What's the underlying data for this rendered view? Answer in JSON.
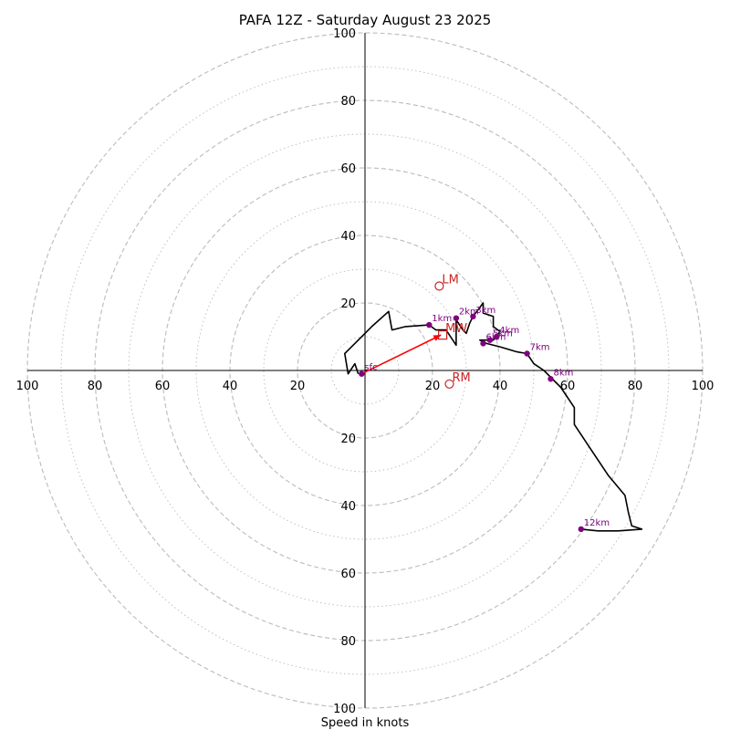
{
  "chart_data": {
    "type": "hodograph",
    "title": "PAFA 12Z - Saturday August 23 2025",
    "xlabel": "Speed in knots",
    "ring_max": 100,
    "ring_labels": [
      "20",
      "40",
      "60",
      "80",
      "100"
    ],
    "rings": {
      "major_step": 20,
      "minor_step": 10,
      "major_style": "dashed",
      "minor_style": "dotted"
    },
    "colors": {
      "trace": "#000000",
      "height_marker": "#800080",
      "storm_motion": "#cc2222",
      "bunkers_vector": "#ff0000",
      "grid": "#bbbbbb"
    },
    "trace": [
      [
        -2,
        -1
      ],
      [
        -3,
        2
      ],
      [
        -5,
        -1
      ],
      [
        -6,
        5
      ],
      [
        2,
        13
      ],
      [
        7,
        17.5
      ],
      [
        8,
        12
      ],
      [
        12,
        13
      ],
      [
        19,
        13.5
      ],
      [
        21,
        12
      ],
      [
        24,
        12
      ],
      [
        26,
        9
      ],
      [
        27,
        7.5
      ],
      [
        27,
        10.5
      ],
      [
        27,
        15
      ],
      [
        29,
        12
      ],
      [
        30,
        11
      ],
      [
        31,
        14
      ],
      [
        32,
        16
      ],
      [
        35,
        20
      ],
      [
        35,
        17
      ],
      [
        38,
        16
      ],
      [
        38,
        13
      ],
      [
        40,
        11.5
      ],
      [
        38,
        9
      ],
      [
        36,
        9
      ],
      [
        34,
        9
      ],
      [
        36,
        8
      ],
      [
        40,
        7
      ],
      [
        45,
        5.5
      ],
      [
        48,
        5
      ],
      [
        50,
        2
      ],
      [
        53,
        0
      ],
      [
        55,
        -2
      ],
      [
        58,
        -5
      ],
      [
        62,
        -11
      ],
      [
        62,
        -16
      ],
      [
        66,
        -22
      ],
      [
        72,
        -31
      ],
      [
        77,
        -37
      ],
      [
        78,
        -42
      ],
      [
        79,
        -46
      ],
      [
        82,
        -47
      ],
      [
        75,
        -47.5
      ],
      [
        69,
        -47.5
      ],
      [
        64,
        -47
      ]
    ],
    "height_markers": [
      {
        "label": "sfc",
        "u": -1,
        "v": -1
      },
      {
        "label": "1km",
        "u": 19,
        "v": 13.5
      },
      {
        "label": "2km",
        "u": 27,
        "v": 15.5
      },
      {
        "label": "3km",
        "u": 32,
        "v": 16
      },
      {
        "label": "4km",
        "u": 39,
        "v": 10
      },
      {
        "label": "5km",
        "u": 37,
        "v": 9
      },
      {
        "label": "6km",
        "u": 35,
        "v": 8
      },
      {
        "label": "7km",
        "u": 48,
        "v": 5
      },
      {
        "label": "8km",
        "u": 55,
        "v": -2.5
      },
      {
        "label": "12km",
        "u": 64,
        "v": -47
      }
    ],
    "storm_motion": [
      {
        "label": "LM",
        "u": 22,
        "v": 25
      },
      {
        "label": "MW",
        "u": 23,
        "v": 10.5
      },
      {
        "label": "RM",
        "u": 25,
        "v": -4
      }
    ],
    "bunkers_vector": {
      "from": [
        -1,
        -1
      ],
      "to": [
        22.5,
        10.5
      ]
    }
  }
}
